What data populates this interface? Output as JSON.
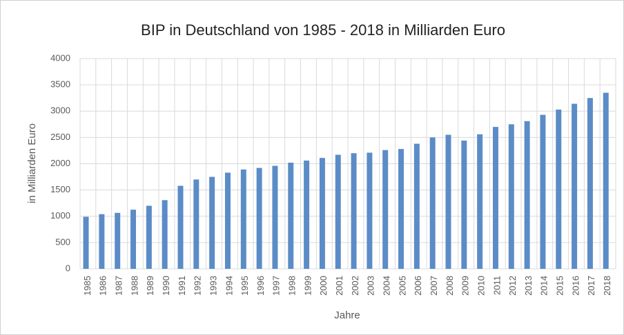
{
  "chart_data": {
    "type": "bar",
    "title": "BIP in Deutschland von 1985 - 2018 in Milliarden Euro",
    "x_label": "Jahre",
    "y_label": "in Milliarden Euro",
    "categories": [
      "1985",
      "1986",
      "1987",
      "1988",
      "1989",
      "1990",
      "1991",
      "1992",
      "1993",
      "1994",
      "1995",
      "1996",
      "1997",
      "1998",
      "1999",
      "2000",
      "2001",
      "2002",
      "2003",
      "2004",
      "2005",
      "2006",
      "2007",
      "2008",
      "2009",
      "2010",
      "2011",
      "2012",
      "2013",
      "2014",
      "2015",
      "2016",
      "2017",
      "2018"
    ],
    "values": [
      990,
      1040,
      1065,
      1125,
      1200,
      1307,
      1580,
      1700,
      1750,
      1830,
      1890,
      1920,
      1960,
      2020,
      2060,
      2110,
      2170,
      2200,
      2210,
      2260,
      2280,
      2380,
      2500,
      2550,
      2440,
      2560,
      2700,
      2750,
      2810,
      2930,
      3030,
      3140,
      3250,
      3350
    ],
    "color": "#5b8cc7",
    "ylim": [
      0,
      4000
    ],
    "yticks": [
      0,
      500,
      1000,
      1500,
      2000,
      2500,
      3000,
      3500,
      4000
    ],
    "grid": true
  }
}
